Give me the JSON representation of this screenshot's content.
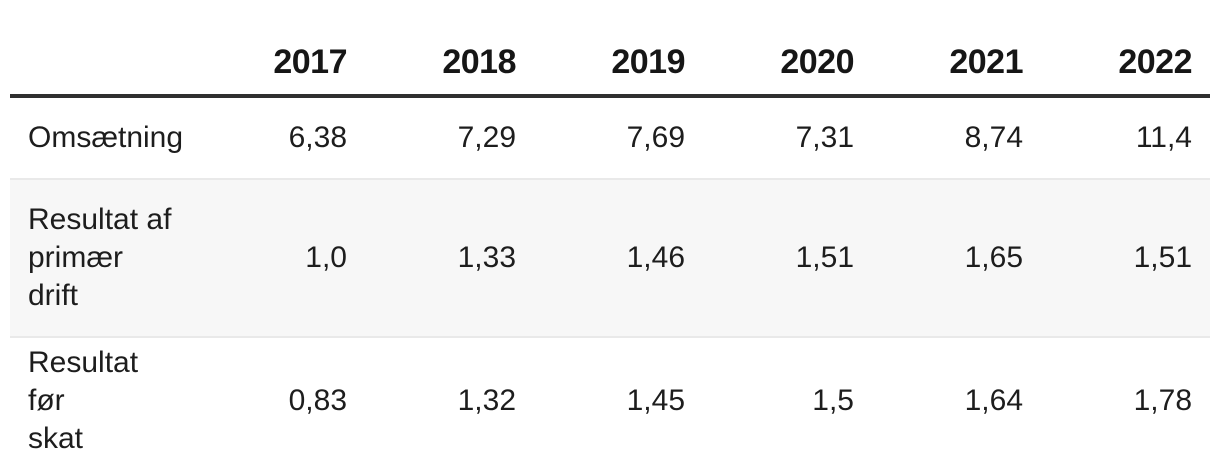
{
  "table": {
    "columns": [
      "2017",
      "2018",
      "2019",
      "2020",
      "2021",
      "2022"
    ],
    "rows": [
      {
        "label": "Omsætning",
        "values": [
          "6,38",
          "7,29",
          "7,69",
          "7,31",
          "8,74",
          "11,4"
        ]
      },
      {
        "label": "Resultat af\nprimær\ndrift",
        "values": [
          "1,0",
          "1,33",
          "1,46",
          "1,51",
          "1,65",
          "1,51"
        ]
      },
      {
        "label": "Resultat før\nskat",
        "values": [
          "0,83",
          "1,32",
          "1,45",
          "1,5",
          "1,64",
          "1,78"
        ]
      }
    ]
  },
  "colors": {
    "text": "#1d1d1d",
    "header_text": "#161616",
    "header_rule": "#2f2f2f",
    "row_separator": "#e9e9e9",
    "striped_row_background": "#f7f7f7",
    "page_background": "#ffffff"
  },
  "chart_data": {
    "type": "table",
    "title": "",
    "categories": [
      "2017",
      "2018",
      "2019",
      "2020",
      "2021",
      "2022"
    ],
    "series": [
      {
        "name": "Omsætning",
        "values": [
          6.38,
          7.29,
          7.69,
          7.31,
          8.74,
          11.4
        ]
      },
      {
        "name": "Resultat af primær drift",
        "values": [
          1.0,
          1.33,
          1.46,
          1.51,
          1.65,
          1.51
        ]
      },
      {
        "name": "Resultat før skat",
        "values": [
          0.83,
          1.32,
          1.45,
          1.5,
          1.64,
          1.78
        ]
      }
    ],
    "number_format": "decimal-comma",
    "layout": {
      "header_position": "top",
      "label_column": "left",
      "striped_rows": [
        1
      ]
    }
  }
}
